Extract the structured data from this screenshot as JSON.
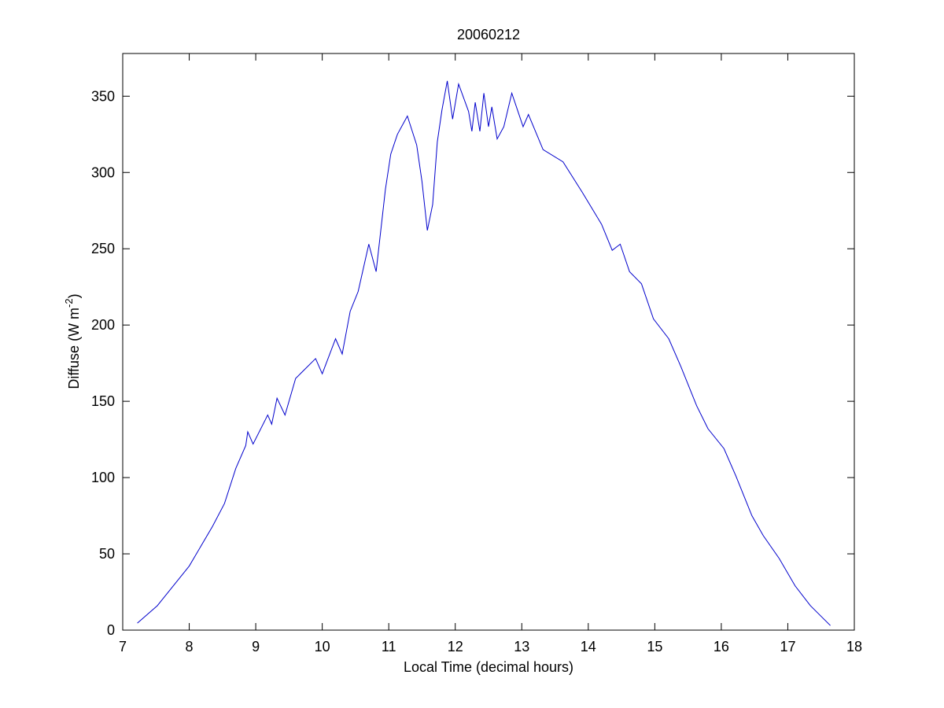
{
  "chart_data": {
    "type": "line",
    "title": "20060212",
    "xlabel": "Local Time (decimal hours)",
    "ylabel": {
      "text": "Diffuse (W m",
      "superscript": "-2",
      "close": ")"
    },
    "xlim": [
      7,
      18
    ],
    "xticks": [
      7,
      8,
      9,
      10,
      11,
      12,
      13,
      14,
      15,
      16,
      17,
      18
    ],
    "ylim": [
      0,
      378
    ],
    "yticks": [
      0,
      50,
      100,
      150,
      200,
      250,
      300,
      350
    ],
    "series": [
      {
        "color": "#0000cc",
        "x": [
          7.22,
          7.52,
          8.0,
          8.35,
          8.53,
          8.7,
          8.85,
          8.88,
          8.96,
          9.18,
          9.24,
          9.32,
          9.44,
          9.6,
          9.9,
          10.0,
          10.2,
          10.3,
          10.42,
          10.54,
          10.7,
          10.81,
          10.95,
          11.03,
          11.13,
          11.28,
          11.42,
          11.5,
          11.58,
          11.66,
          11.73,
          11.8,
          11.88,
          11.96,
          12.05,
          12.2,
          12.25,
          12.3,
          12.37,
          12.43,
          12.5,
          12.55,
          12.63,
          12.73,
          12.85,
          13.02,
          13.1,
          13.32,
          13.62,
          13.91,
          14.2,
          14.36,
          14.48,
          14.62,
          14.8,
          14.98,
          15.21,
          15.39,
          15.63,
          15.8,
          16.04,
          16.22,
          16.46,
          16.63,
          16.87,
          17.11,
          17.34,
          17.64
        ],
        "values": [
          4.6,
          16,
          42,
          68,
          83,
          106,
          121,
          130,
          122,
          141,
          135,
          152,
          141,
          165,
          178,
          168,
          191,
          181,
          209,
          222,
          253,
          235,
          289,
          312,
          325,
          337,
          318,
          294,
          262,
          279,
          320,
          341,
          360,
          335,
          358,
          340,
          327,
          346,
          327,
          352,
          330,
          343,
          322,
          330,
          352,
          330,
          338,
          315,
          307,
          287,
          266,
          249,
          253,
          235,
          227,
          204,
          191,
          173,
          147,
          132,
          119,
          101,
          75,
          62,
          47,
          29,
          16,
          3
        ]
      }
    ]
  }
}
